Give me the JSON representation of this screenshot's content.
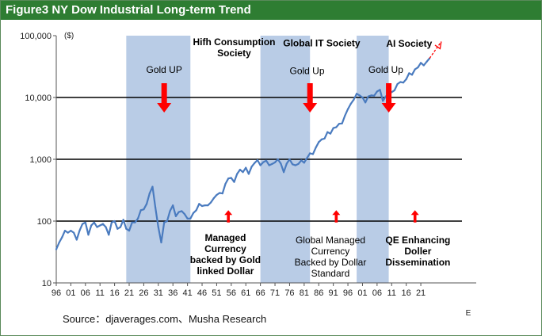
{
  "title": "Figure3 NY Dow Industrial Long-term Trend",
  "source": "Source：djaverages.com、Musha Research",
  "colors": {
    "line": "#4a7bbf",
    "band": "#b9cce6",
    "arrow": "#ff0000",
    "header": "#2e7d32"
  },
  "chart_data": {
    "type": "line",
    "y_scale": "log",
    "ylim": [
      10,
      100000
    ],
    "y_unit_label": "($)",
    "y_ticks": [
      {
        "value": 10,
        "label": "10"
      },
      {
        "value": 100,
        "label": "100"
      },
      {
        "value": 1000,
        "label": "1,000"
      },
      {
        "value": 10000,
        "label": "10,000"
      },
      {
        "value": 100000,
        "label": "100,000"
      }
    ],
    "xlim": [
      1896,
      2040
    ],
    "x_ticks": [
      {
        "value": 1896,
        "label": "96"
      },
      {
        "value": 1901,
        "label": "01"
      },
      {
        "value": 1906,
        "label": "06"
      },
      {
        "value": 1911,
        "label": "11"
      },
      {
        "value": 1916,
        "label": "16"
      },
      {
        "value": 1921,
        "label": "21"
      },
      {
        "value": 1926,
        "label": "26"
      },
      {
        "value": 1931,
        "label": "31"
      },
      {
        "value": 1936,
        "label": "36"
      },
      {
        "value": 1941,
        "label": "41"
      },
      {
        "value": 1946,
        "label": "46"
      },
      {
        "value": 1951,
        "label": "51"
      },
      {
        "value": 1956,
        "label": "56"
      },
      {
        "value": 1961,
        "label": "61"
      },
      {
        "value": 1966,
        "label": "66"
      },
      {
        "value": 1971,
        "label": "71"
      },
      {
        "value": 1976,
        "label": "76"
      },
      {
        "value": 1981,
        "label": "81"
      },
      {
        "value": 1986,
        "label": "86"
      },
      {
        "value": 1991,
        "label": "91"
      },
      {
        "value": 1996,
        "label": "96"
      },
      {
        "value": 2001,
        "label": "01"
      },
      {
        "value": 2006,
        "label": "06"
      },
      {
        "value": 2011,
        "label": "11"
      },
      {
        "value": 2016,
        "label": "16"
      },
      {
        "value": 2021,
        "label": "21"
      }
    ],
    "x_end_label": "E",
    "gridlines_y": [
      100,
      1000,
      10000
    ],
    "bands": [
      {
        "start": 1920,
        "end": 1942
      },
      {
        "start": 1966,
        "end": 1983
      },
      {
        "start": 1999,
        "end": 2010
      }
    ],
    "series": [
      {
        "x": [
          1896,
          1897,
          1898,
          1899,
          1900,
          1901,
          1902,
          1903,
          1904,
          1905,
          1906,
          1907,
          1908,
          1909,
          1910,
          1911,
          1912,
          1913,
          1914,
          1915,
          1916,
          1917,
          1918,
          1919,
          1920,
          1921,
          1922,
          1923,
          1924,
          1925,
          1926,
          1927,
          1928,
          1929,
          1930,
          1931,
          1932,
          1933,
          1934,
          1935,
          1936,
          1937,
          1938,
          1939,
          1940,
          1941,
          1942,
          1943,
          1944,
          1945,
          1946,
          1947,
          1948,
          1949,
          1950,
          1951,
          1952,
          1953,
          1954,
          1955,
          1956,
          1957,
          1958,
          1959,
          1960,
          1961,
          1962,
          1963,
          1964,
          1965,
          1966,
          1967,
          1968,
          1969,
          1970,
          1971,
          1972,
          1973,
          1974,
          1975,
          1976,
          1977,
          1978,
          1979,
          1980,
          1981,
          1982,
          1983,
          1984,
          1985,
          1986,
          1987,
          1988,
          1989,
          1990,
          1991,
          1992,
          1993,
          1994,
          1995,
          1996,
          1997,
          1998,
          1999,
          2000,
          2001,
          2002,
          2003,
          2004,
          2005,
          2006,
          2007,
          2008,
          2009,
          2010,
          2011,
          2012,
          2013,
          2014,
          2015,
          2016,
          2017,
          2018,
          2019,
          2020,
          2021,
          2022,
          2023,
          2024
        ],
        "values": [
          35,
          45,
          55,
          70,
          65,
          70,
          65,
          50,
          70,
          90,
          95,
          60,
          85,
          95,
          80,
          85,
          90,
          80,
          60,
          95,
          100,
          75,
          80,
          105,
          75,
          70,
          95,
          95,
          110,
          150,
          155,
          190,
          280,
          360,
          165,
          80,
          45,
          95,
          100,
          145,
          180,
          120,
          140,
          145,
          130,
          110,
          110,
          135,
          150,
          190,
          175,
          180,
          180,
          200,
          235,
          265,
          285,
          280,
          400,
          490,
          500,
          430,
          580,
          680,
          620,
          730,
          580,
          760,
          870,
          970,
          800,
          900,
          950,
          800,
          840,
          890,
          1000,
          850,
          620,
          850,
          1000,
          830,
          800,
          840,
          960,
          880,
          1050,
          1250,
          1210,
          1550,
          1900,
          2100,
          2170,
          2750,
          2600,
          3200,
          3300,
          3750,
          3800,
          5100,
          6500,
          7900,
          9200,
          11500,
          10800,
          10000,
          8300,
          10400,
          10800,
          10700,
          12500,
          13300,
          8800,
          10400,
          11600,
          12200,
          13100,
          16500,
          17800,
          17400,
          19800,
          24700,
          23300,
          28500,
          30600,
          36300,
          33100,
          37700,
          43000
        ]
      },
      {
        "name": "projection",
        "x": [
          2024,
          2028
        ],
        "values": [
          43000,
          80000
        ]
      }
    ],
    "annotations": [
      {
        "text": "Gold UP",
        "x": 1933,
        "y": 25000,
        "color": "#000000"
      },
      {
        "text": "Hifh Consumption\nSociety",
        "x": 1957,
        "y": 70000,
        "color": "#000000",
        "bold": true
      },
      {
        "text": "Global IT Society",
        "x": 1987,
        "y": 67000,
        "color": "#000000",
        "bold": true
      },
      {
        "text": "Gold Up",
        "x": 1982,
        "y": 24000,
        "color": "#000000"
      },
      {
        "text": "AI Society",
        "x": 2017,
        "y": 66000,
        "color": "#000000",
        "bold": true
      },
      {
        "text": "Gold Up",
        "x": 2009,
        "y": 25000,
        "color": "#000000"
      },
      {
        "text": "Managed\nCurrency\nbacked by Gold\nlinked Dollar",
        "x": 1954,
        "y": 48,
        "color": "#000000",
        "bold": true
      },
      {
        "text": "Global Managed\nCurrency\nBacked by Dollar\nStandard",
        "x": 1990,
        "y": 44,
        "color": "#000000"
      },
      {
        "text": "QE Enhancing\nDoller\nDissemination",
        "x": 2020,
        "y": 44,
        "color": "#000000",
        "bold": true
      }
    ],
    "arrows": [
      {
        "kind": "down",
        "x": 1933,
        "y_top": 17000,
        "y_bottom": 5700
      },
      {
        "kind": "down",
        "x": 1983,
        "y_top": 17000,
        "y_bottom": 5700
      },
      {
        "kind": "down",
        "x": 2010,
        "y_top": 17000,
        "y_bottom": 5700
      },
      {
        "kind": "up",
        "x": 1955,
        "y_top": 150,
        "y_bottom": 95
      },
      {
        "kind": "up",
        "x": 1992,
        "y_top": 150,
        "y_bottom": 95
      },
      {
        "kind": "up",
        "x": 2019,
        "y_top": 150,
        "y_bottom": 95
      }
    ]
  }
}
